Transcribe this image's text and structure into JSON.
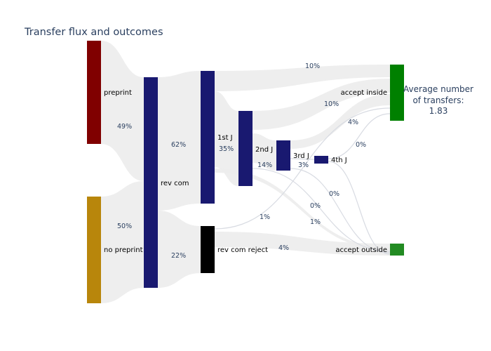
{
  "chart_data": {
    "type": "sankey",
    "title": "Transfer flux and outcomes",
    "annotation": [
      "Average number",
      "of transfers:",
      "1.83"
    ],
    "nodes": [
      {
        "id": "preprint",
        "label": "preprint",
        "color": "#800000"
      },
      {
        "id": "no_preprint",
        "label": "no preprint",
        "color": "#b8860b"
      },
      {
        "id": "rev_com",
        "label": "rev com",
        "color": "#191970"
      },
      {
        "id": "j1",
        "label": "1st J",
        "color": "#191970"
      },
      {
        "id": "rev_com_reject",
        "label": "rev com reject",
        "color": "#000000"
      },
      {
        "id": "j2",
        "label": "2nd J",
        "color": "#191970"
      },
      {
        "id": "j3",
        "label": "3rd J",
        "color": "#191970"
      },
      {
        "id": "j4",
        "label": "4th J",
        "color": "#191970"
      },
      {
        "id": "accept_inside",
        "label": "accept inside",
        "color": "#008000"
      },
      {
        "id": "accept_outside",
        "label": "accept outside",
        "color": "#228b22"
      }
    ],
    "flow_labels": [
      "49%",
      "50%",
      "62%",
      "22%",
      "35%",
      "14%",
      "3%",
      "10%",
      "10%",
      "4%",
      "0%",
      "0%",
      "0%",
      "1%",
      "1%",
      "4%"
    ]
  }
}
